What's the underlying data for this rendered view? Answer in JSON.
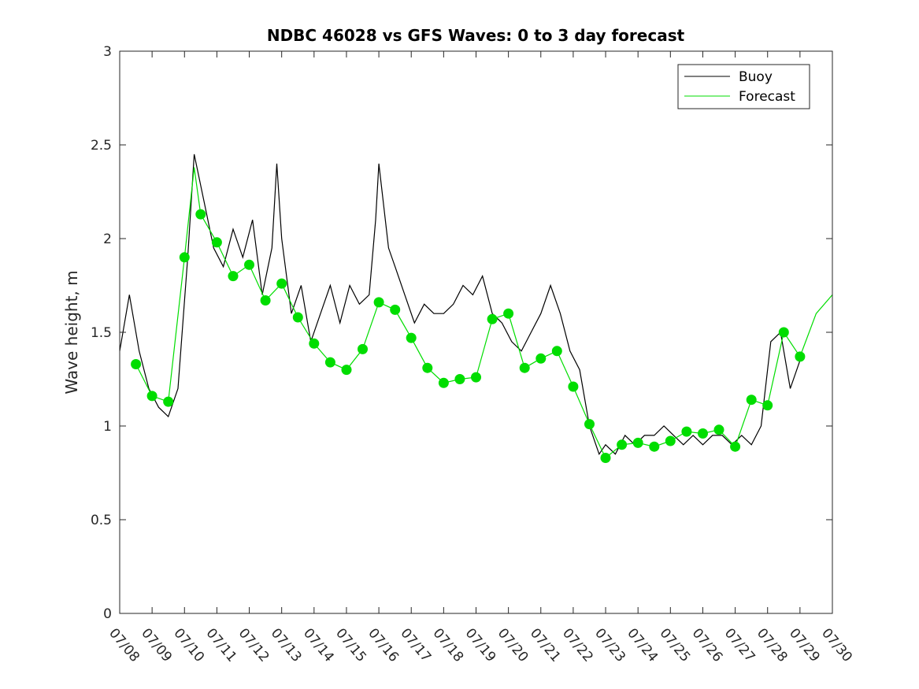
{
  "chart_data": {
    "type": "line",
    "title": "NDBC 46028 vs GFS Waves: 0 to 3 day forecast",
    "ylabel": "Wave height, m",
    "xlabel": "",
    "xlim": [
      8,
      30
    ],
    "ylim": [
      0,
      3
    ],
    "x_ticks": [
      8,
      9,
      10,
      11,
      12,
      13,
      14,
      15,
      16,
      17,
      18,
      19,
      20,
      21,
      22,
      23,
      24,
      25,
      26,
      27,
      28,
      29,
      30
    ],
    "x_tick_labels": [
      "07/08",
      "07/09",
      "07/10",
      "07/11",
      "07/12",
      "07/13",
      "07/14",
      "07/15",
      "07/16",
      "07/17",
      "07/18",
      "07/19",
      "07/20",
      "07/21",
      "07/22",
      "07/23",
      "07/24",
      "07/25",
      "07/26",
      "07/27",
      "07/28",
      "07/29",
      "07/30"
    ],
    "y_ticks": [
      0,
      0.5,
      1,
      1.5,
      2,
      2.5,
      3
    ],
    "y_tick_labels": [
      "0",
      "0.5",
      "1",
      "1.5",
      "2",
      "2.5",
      "3"
    ],
    "legend": {
      "position": "top-right",
      "entries": [
        {
          "label": "Buoy",
          "color": "#000000"
        },
        {
          "label": "Forecast",
          "color": "#00dd00"
        }
      ]
    },
    "colors": {
      "buoy": "#000000",
      "forecast": "#00dd00"
    },
    "series": [
      {
        "name": "Buoy",
        "x": [
          8.0,
          8.3,
          8.6,
          8.9,
          9.2,
          9.5,
          9.8,
          10.1,
          10.3,
          10.6,
          10.9,
          11.2,
          11.5,
          11.8,
          12.1,
          12.4,
          12.7,
          12.85,
          13.0,
          13.3,
          13.6,
          13.9,
          14.2,
          14.5,
          14.8,
          15.1,
          15.4,
          15.7,
          15.9,
          16.0,
          16.1,
          16.3,
          16.5,
          16.8,
          17.1,
          17.4,
          17.7,
          18.0,
          18.3,
          18.6,
          18.9,
          19.2,
          19.5,
          19.8,
          20.1,
          20.4,
          20.7,
          21.0,
          21.3,
          21.6,
          21.9,
          22.2,
          22.5,
          22.8,
          23.0,
          23.3,
          23.6,
          23.9,
          24.2,
          24.5,
          24.8,
          25.1,
          25.4,
          25.7,
          26.0,
          26.3,
          26.6,
          26.9,
          27.2,
          27.5,
          27.8,
          28.1,
          28.4,
          28.7,
          29.0
        ],
        "y": [
          1.4,
          1.7,
          1.4,
          1.2,
          1.1,
          1.05,
          1.2,
          1.9,
          2.45,
          2.2,
          1.95,
          1.85,
          2.05,
          1.9,
          2.1,
          1.7,
          1.95,
          2.4,
          2.0,
          1.6,
          1.75,
          1.45,
          1.6,
          1.75,
          1.55,
          1.75,
          1.65,
          1.7,
          2.1,
          2.4,
          2.25,
          1.95,
          1.85,
          1.7,
          1.55,
          1.65,
          1.6,
          1.6,
          1.65,
          1.75,
          1.7,
          1.8,
          1.6,
          1.55,
          1.45,
          1.4,
          1.5,
          1.6,
          1.75,
          1.6,
          1.4,
          1.3,
          1.0,
          0.85,
          0.9,
          0.85,
          0.95,
          0.9,
          0.95,
          0.95,
          1.0,
          0.95,
          0.9,
          0.95,
          0.9,
          0.95,
          0.95,
          0.9,
          0.95,
          0.9,
          1.0,
          1.45,
          1.5,
          1.2,
          1.35
        ]
      },
      {
        "name": "Forecast",
        "x": [
          8.5,
          9.0,
          9.5,
          10.0,
          10.3,
          10.5,
          11.0,
          11.5,
          12.0,
          12.5,
          13.0,
          13.5,
          14.0,
          14.5,
          15.0,
          15.5,
          16.0,
          16.5,
          17.0,
          17.5,
          18.0,
          18.5,
          19.0,
          19.5,
          20.0,
          20.5,
          21.0,
          21.5,
          22.0,
          22.5,
          23.0,
          23.5,
          24.0,
          24.5,
          25.0,
          25.5,
          26.0,
          26.5,
          27.0,
          27.5,
          28.0,
          28.5,
          29.0,
          29.5,
          30.0
        ],
        "y": [
          1.33,
          1.16,
          1.13,
          1.9,
          2.38,
          2.13,
          1.98,
          1.8,
          1.86,
          1.67,
          1.76,
          1.58,
          1.44,
          1.34,
          1.3,
          1.41,
          1.66,
          1.62,
          1.47,
          1.31,
          1.23,
          1.25,
          1.26,
          1.57,
          1.6,
          1.31,
          1.36,
          1.4,
          1.21,
          1.01,
          0.83,
          0.9,
          0.91,
          0.89,
          0.92,
          0.97,
          0.96,
          0.98,
          0.89,
          1.14,
          1.11,
          1.5,
          1.37,
          1.6,
          1.7
        ]
      }
    ],
    "markers": {
      "name": "Forecast",
      "x": [
        8.5,
        9.0,
        9.5,
        10.0,
        10.5,
        11.0,
        11.5,
        12.0,
        12.5,
        13.0,
        13.5,
        14.0,
        14.5,
        15.0,
        15.5,
        16.0,
        16.5,
        17.0,
        17.5,
        18.0,
        18.5,
        19.0,
        19.5,
        20.0,
        20.5,
        21.0,
        21.5,
        22.0,
        22.5,
        23.0,
        23.5,
        24.0,
        24.5,
        25.0,
        25.5,
        26.0,
        26.5,
        27.0,
        27.5,
        28.0,
        28.5,
        29.0
      ],
      "y": [
        1.33,
        1.16,
        1.13,
        1.9,
        2.13,
        1.98,
        1.8,
        1.86,
        1.67,
        1.76,
        1.58,
        1.44,
        1.34,
        1.3,
        1.41,
        1.66,
        1.62,
        1.47,
        1.31,
        1.23,
        1.25,
        1.26,
        1.57,
        1.6,
        1.31,
        1.36,
        1.4,
        1.21,
        1.01,
        0.83,
        0.9,
        0.91,
        0.89,
        0.92,
        0.97,
        0.96,
        0.98,
        0.89,
        1.14,
        1.11,
        1.5,
        1.37
      ]
    },
    "grid": false
  }
}
